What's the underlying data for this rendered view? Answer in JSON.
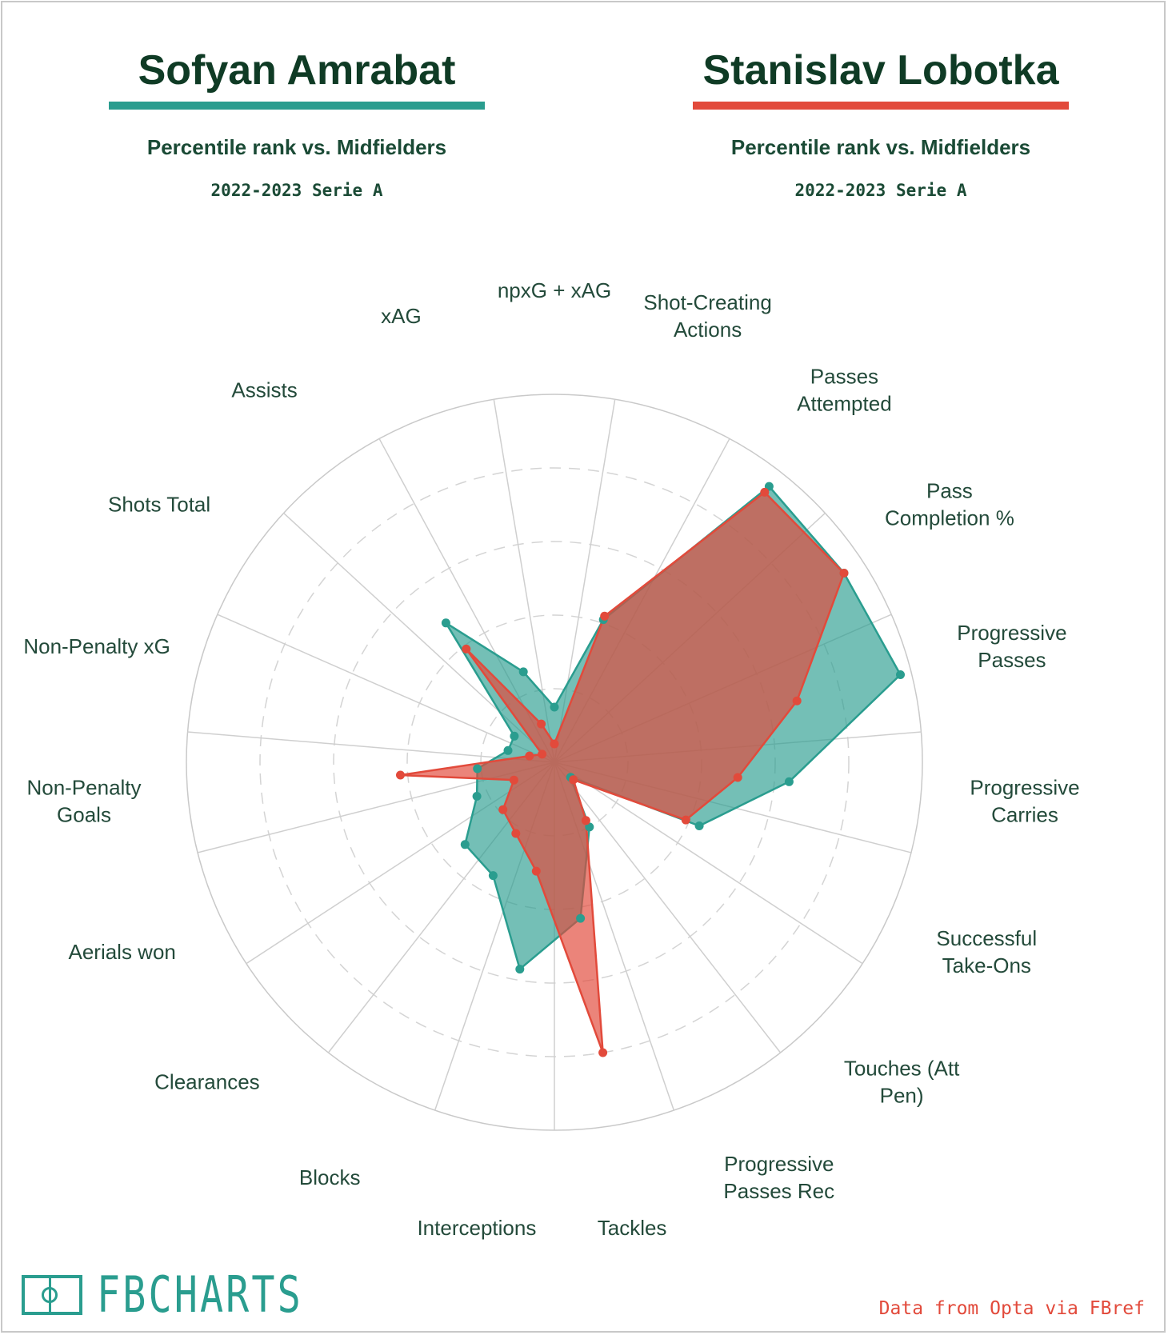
{
  "players": [
    {
      "name": "Sofyan Amrabat",
      "subtitle": "Percentile rank vs. Midfielders",
      "season": "2022-2023 Serie A",
      "color": "#2a9d8f"
    },
    {
      "name": "Stanislav Lobotka",
      "subtitle": "Percentile rank vs. Midfielders",
      "season": "2022-2023 Serie A",
      "color": "#e24a3b"
    }
  ],
  "chart_data": {
    "type": "radar",
    "scale": "percentile",
    "rlim": [
      0,
      100
    ],
    "grid_rings": [
      20,
      40,
      60,
      80
    ],
    "categories": [
      [
        "npxG + xAG"
      ],
      [
        "Shot-Creating",
        "Actions"
      ],
      [
        "Passes",
        "Attempted"
      ],
      [
        "Pass",
        "Completion %"
      ],
      [
        "Progressive",
        "Passes"
      ],
      [
        "Progressive",
        "Carries"
      ],
      [
        "Successful",
        "Take-Ons"
      ],
      [
        "Touches (Att",
        "Pen)"
      ],
      [
        "Progressive",
        "Passes Rec"
      ],
      [
        "Tackles"
      ],
      [
        "Interceptions"
      ],
      [
        "Blocks"
      ],
      [
        "Clearances"
      ],
      [
        "Aerials won"
      ],
      [
        "Non-Penalty",
        "Goals"
      ],
      [
        "Non-Penalty xG"
      ],
      [
        "Shots Total"
      ],
      [
        "Assists"
      ],
      [
        "xAG"
      ]
    ],
    "series": [
      {
        "name": "Sofyan Amrabat",
        "color": "#2a9d8f",
        "values": [
          15,
          41,
          95,
          94,
          97,
          64,
          43,
          6,
          20,
          43,
          57,
          35,
          33,
          23,
          21,
          13,
          13,
          48,
          26
        ]
      },
      {
        "name": "Stanislav Lobotka",
        "color": "#e24a3b",
        "values": [
          5,
          42,
          93,
          94,
          68,
          50,
          39,
          7,
          18,
          80,
          30,
          22,
          19,
          12,
          42,
          7,
          4,
          39,
          11
        ]
      }
    ]
  },
  "logo": {
    "text": "FBCHARTS"
  },
  "credit": "Data from Opta via FBref"
}
